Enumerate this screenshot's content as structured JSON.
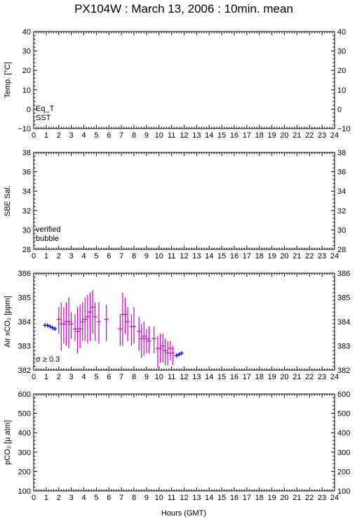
{
  "title": "PX104W : March 13, 2006 : 10min. mean",
  "xlabel": "Hours (GMT)",
  "colors": {
    "eq_t": "#cc0000",
    "sst": "#0000cc",
    "verified": "#0000cc",
    "bubble": "#cc00cc",
    "sigma": "#cc00cc"
  },
  "panels": [
    {
      "id": "temp",
      "ylabel": "Temp. [°C]",
      "ylim": [
        -10,
        40
      ],
      "ticks": [
        "40",
        "30",
        "20",
        "10",
        "0",
        "−10"
      ],
      "tick_values": [
        40,
        30,
        20,
        10,
        0,
        -10
      ],
      "legend": [
        {
          "label": "Eq_T",
          "color": "#cc0000"
        },
        {
          "label": "SST",
          "color": "#0000cc"
        }
      ]
    },
    {
      "id": "sal",
      "ylabel": "SBE Sal.",
      "ylim": [
        28,
        38
      ],
      "ticks": [
        "38",
        "36",
        "34",
        "32",
        "30",
        "28"
      ],
      "tick_values": [
        38,
        36,
        34,
        32,
        30,
        28
      ],
      "legend": [
        {
          "label": "verified",
          "color": "#0000cc"
        },
        {
          "label": "bubble",
          "color": "#cc00cc"
        }
      ]
    },
    {
      "id": "xco2",
      "ylabel": "Air xCO₂ [ppm]",
      "ylim": [
        382,
        386
      ],
      "ticks": [
        "386",
        "385",
        "384",
        "383",
        "382"
      ],
      "tick_values": [
        386,
        385,
        384,
        383,
        382
      ],
      "legend": [
        {
          "label": "σ ≥ 0.3",
          "color": "#cc00cc"
        }
      ]
    },
    {
      "id": "pco2",
      "ylabel": "pCO₂ [µ atm]",
      "ylim": [
        100,
        600
      ],
      "ticks": [
        "600",
        "500",
        "400",
        "300",
        "200",
        "100"
      ],
      "tick_values": [
        600,
        500,
        400,
        300,
        200,
        100
      ],
      "legend": []
    }
  ],
  "xticks": [
    "0",
    "1",
    "2",
    "3",
    "4",
    "5",
    "6",
    "7",
    "8",
    "9",
    "10",
    "11",
    "12",
    "13",
    "14",
    "15",
    "16",
    "17",
    "18",
    "19",
    "20",
    "21",
    "22",
    "23",
    "24"
  ],
  "chart_data": {
    "type": "scatter",
    "title": "PX104W : March 13, 2006 : 10min. mean",
    "xlabel": "Hours (GMT)",
    "xlim": [
      0,
      24
    ],
    "grid": false,
    "series": [
      {
        "name": "verified",
        "panel": "xco2",
        "style": "blue-cross",
        "points": [
          {
            "x": 0.9,
            "y": 383.85
          },
          {
            "x": 1.1,
            "y": 383.85
          },
          {
            "x": 1.3,
            "y": 383.8
          },
          {
            "x": 1.5,
            "y": 383.75
          },
          {
            "x": 1.7,
            "y": 383.7
          },
          {
            "x": 11.4,
            "y": 382.6
          },
          {
            "x": 11.6,
            "y": 382.65
          },
          {
            "x": 11.8,
            "y": 382.7
          }
        ]
      },
      {
        "name": "σ ≥ 0.3",
        "panel": "xco2",
        "style": "magenta-errorbar",
        "points": [
          {
            "x": 2.0,
            "y": 384.1,
            "lo": 383.5,
            "hi": 384.6
          },
          {
            "x": 2.2,
            "y": 383.9,
            "lo": 382.8,
            "hi": 384.8
          },
          {
            "x": 2.4,
            "y": 383.9,
            "lo": 383.1,
            "hi": 384.6
          },
          {
            "x": 2.6,
            "y": 384.0,
            "lo": 383.0,
            "hi": 384.8
          },
          {
            "x": 2.8,
            "y": 384.0,
            "lo": 382.9,
            "hi": 385.0
          },
          {
            "x": 3.0,
            "y": 383.9,
            "lo": 383.3,
            "hi": 384.4
          },
          {
            "x": 3.3,
            "y": 383.7,
            "lo": 383.2,
            "hi": 384.3
          },
          {
            "x": 3.5,
            "y": 383.6,
            "lo": 382.7,
            "hi": 384.6
          },
          {
            "x": 3.7,
            "y": 383.7,
            "lo": 382.9,
            "hi": 384.7
          },
          {
            "x": 3.9,
            "y": 384.0,
            "lo": 383.2,
            "hi": 384.8
          },
          {
            "x": 4.1,
            "y": 384.1,
            "lo": 383.2,
            "hi": 385.0
          },
          {
            "x": 4.3,
            "y": 384.2,
            "lo": 383.1,
            "hi": 385.1
          },
          {
            "x": 4.5,
            "y": 384.4,
            "lo": 383.2,
            "hi": 385.2
          },
          {
            "x": 4.7,
            "y": 384.6,
            "lo": 383.5,
            "hi": 385.3
          },
          {
            "x": 4.9,
            "y": 384.2,
            "lo": 383.2,
            "hi": 384.8
          },
          {
            "x": 5.2,
            "y": 384.0,
            "lo": 383.1,
            "hi": 384.8
          },
          {
            "x": 5.8,
            "y": 384.1,
            "lo": 383.2,
            "hi": 384.7
          },
          {
            "x": 6.9,
            "y": 383.7,
            "lo": 383.0,
            "hi": 384.3
          },
          {
            "x": 7.1,
            "y": 384.3,
            "lo": 383.0,
            "hi": 385.2
          },
          {
            "x": 7.3,
            "y": 384.3,
            "lo": 383.5,
            "hi": 385.0
          },
          {
            "x": 7.5,
            "y": 384.0,
            "lo": 383.2,
            "hi": 384.6
          },
          {
            "x": 7.8,
            "y": 383.8,
            "lo": 383.0,
            "hi": 384.3
          },
          {
            "x": 8.0,
            "y": 383.8,
            "lo": 383.1,
            "hi": 384.6
          },
          {
            "x": 8.4,
            "y": 383.6,
            "lo": 382.8,
            "hi": 384.2
          },
          {
            "x": 8.6,
            "y": 383.3,
            "lo": 382.5,
            "hi": 383.9
          },
          {
            "x": 8.8,
            "y": 383.4,
            "lo": 382.6,
            "hi": 384.0
          },
          {
            "x": 9.0,
            "y": 383.3,
            "lo": 382.7,
            "hi": 383.7
          },
          {
            "x": 9.2,
            "y": 383.2,
            "lo": 382.7,
            "hi": 383.8
          },
          {
            "x": 9.6,
            "y": 383.3,
            "lo": 382.7,
            "hi": 383.8
          },
          {
            "x": 9.9,
            "y": 382.9,
            "lo": 382.1,
            "hi": 383.4
          },
          {
            "x": 10.1,
            "y": 382.9,
            "lo": 382.3,
            "hi": 383.5
          },
          {
            "x": 10.3,
            "y": 383.0,
            "lo": 382.3,
            "hi": 383.5
          },
          {
            "x": 10.5,
            "y": 382.8,
            "lo": 382.2,
            "hi": 383.3
          },
          {
            "x": 10.7,
            "y": 382.7,
            "lo": 382.2,
            "hi": 383.2
          },
          {
            "x": 10.9,
            "y": 382.9,
            "lo": 382.4,
            "hi": 383.2
          },
          {
            "x": 11.1,
            "y": 382.7,
            "lo": 382.2,
            "hi": 383.0
          }
        ]
      }
    ]
  }
}
